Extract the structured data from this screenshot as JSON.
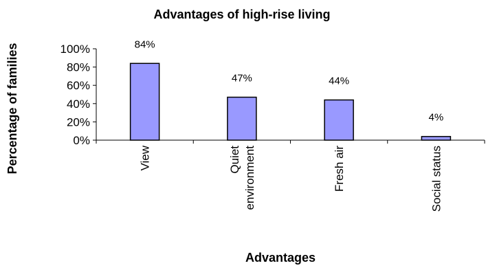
{
  "chart_data": {
    "type": "bar",
    "title": "Advantages of high-rise living",
    "xlabel": "Advantages",
    "ylabel": "Percentage of families",
    "categories": [
      "View",
      "Quiet environment",
      "Fresh air",
      "Social status"
    ],
    "category_lines": [
      [
        "View"
      ],
      [
        "Quiet",
        "environment"
      ],
      [
        "Fresh air"
      ],
      [
        "Social status"
      ]
    ],
    "values": [
      84,
      47,
      44,
      4
    ],
    "data_labels": [
      "84%",
      "47%",
      "44%",
      "4%"
    ],
    "ylim": [
      0,
      100
    ],
    "yticks": [
      0,
      20,
      40,
      60,
      80,
      100
    ],
    "ytick_labels": [
      "0%",
      "20%",
      "40%",
      "60%",
      "80%",
      "100%"
    ],
    "grid": false,
    "legend": "none",
    "bar_color": "#9999ff",
    "bar_stroke": "#000000"
  }
}
